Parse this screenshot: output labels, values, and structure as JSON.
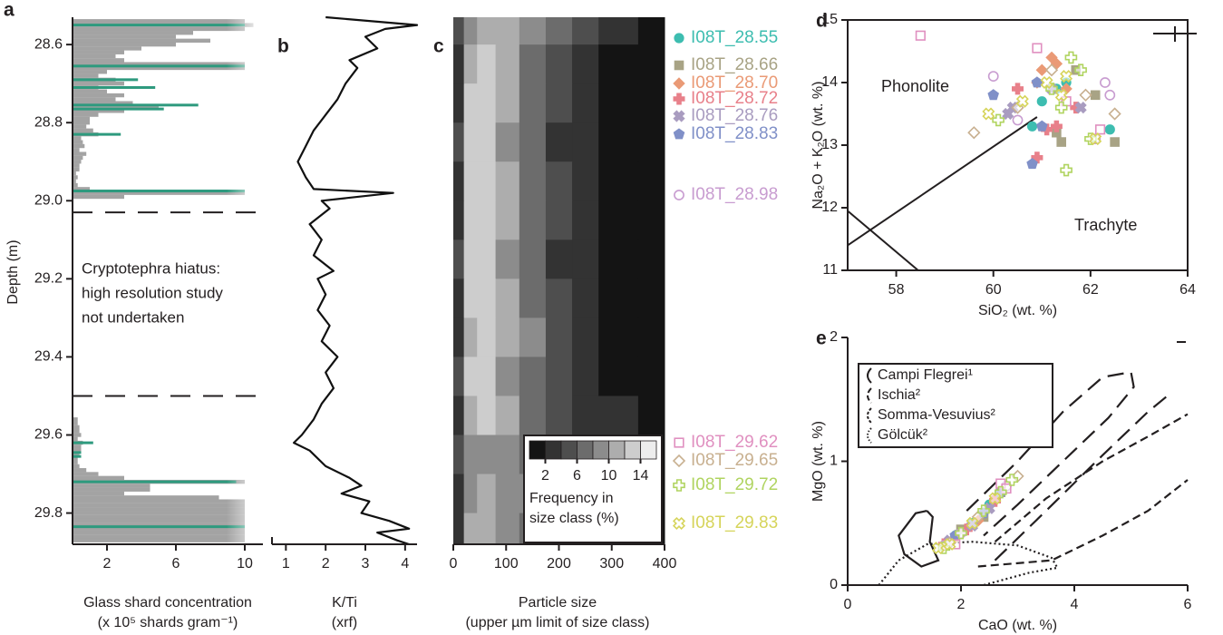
{
  "chart_data": [
    {
      "type": "bar",
      "label": "a",
      "orientation": "horizontal",
      "ylabel": "Depth (m)",
      "xlabel": [
        "Glass shard concentration",
        "(x 10⁵ shards gram⁻¹)"
      ],
      "ylim": [
        28.53,
        29.88
      ],
      "xlim": [
        0,
        11
      ],
      "yticks": [
        28.6,
        28.8,
        {
          "value": 29,
          "label": "29.0"
        },
        29.2,
        29.4,
        29.6,
        29.8
      ],
      "xticks": [
        2,
        6,
        10
      ],
      "series": [
        {
          "color": "#a3a3a3",
          "y": [
            28.54,
            28.55,
            28.56,
            28.57,
            28.58,
            28.59,
            28.6,
            28.61,
            28.62,
            28.63,
            28.64,
            28.65,
            28.66,
            28.67,
            28.68,
            28.69,
            28.7,
            28.71,
            28.72,
            28.73,
            28.74,
            28.75,
            28.76,
            28.77,
            28.78,
            28.79,
            28.8,
            28.81,
            28.82,
            28.83,
            28.84,
            28.85,
            28.86,
            28.87,
            28.88,
            28.89,
            28.9,
            28.91,
            28.92,
            28.93,
            28.94,
            28.95,
            28.96,
            28.97,
            28.98,
            28.99,
            29.56,
            29.57,
            29.58,
            29.59,
            29.6,
            29.61,
            29.62,
            29.63,
            29.64,
            29.65,
            29.66,
            29.67,
            29.68,
            29.69,
            29.7,
            29.71,
            29.72,
            29.73,
            29.74,
            29.75,
            29.76,
            29.77,
            29.78,
            29.79,
            29.8,
            29.81,
            29.82,
            29.83,
            29.84,
            29.85,
            29.86,
            29.87
          ],
          "values": [
            10,
            10.5,
            10,
            7,
            6,
            8,
            6,
            4,
            3,
            2.5,
            3,
            10,
            10,
            2,
            1.5,
            2.5,
            3,
            1.5,
            2,
            3,
            2.5,
            3.5,
            5,
            3,
            1.5,
            1,
            1,
            0.8,
            1.2,
            1.5,
            0.5,
            0.6,
            0.7,
            0.4,
            0.8,
            0.6,
            0.5,
            0.4,
            0.4,
            0.2,
            0.3,
            0.2,
            0.3,
            1,
            10,
            3,
            0.3,
            0.3,
            0.4,
            0.4,
            0.5,
            0.3,
            0.6,
            0.5,
            0.5,
            0.4,
            0.3,
            0.3,
            0.4,
            0.8,
            1.5,
            3,
            10,
            4.5,
            4.5,
            3,
            8.5,
            10,
            10,
            10,
            10,
            10,
            10,
            10,
            10,
            10,
            10,
            10
          ]
        },
        {
          "color": "#2e9a7e",
          "y": [
            28.55,
            28.655,
            28.69,
            28.71,
            28.755,
            28.765,
            28.83,
            28.975,
            29.62,
            29.645,
            29.655,
            29.72,
            29.835
          ],
          "values": [
            10,
            10,
            3.8,
            4.8,
            7.3,
            5.3,
            2.8,
            10,
            1.2,
            0.5,
            0.5,
            9.5,
            10
          ]
        }
      ],
      "hiatus": [
        29.03,
        29.5
      ],
      "annotation": [
        "Cryptotephra hiatus:",
        "high resolution study",
        "not undertaken"
      ]
    },
    {
      "type": "line",
      "label": "b",
      "xlabel": [
        "K/Ti",
        "(xrf)"
      ],
      "ylim": [
        28.53,
        29.88
      ],
      "xlim": [
        0.65,
        4.3
      ],
      "xticks": [
        1,
        2,
        3,
        4
      ],
      "color": "#111111",
      "y": [
        28.53,
        28.55,
        28.56,
        28.58,
        28.61,
        28.64,
        28.66,
        28.7,
        28.74,
        28.78,
        28.82,
        28.86,
        28.9,
        28.94,
        28.97,
        28.98,
        29.0,
        29.02,
        29.06,
        29.1,
        29.14,
        29.18,
        29.2,
        29.24,
        29.28,
        29.32,
        29.36,
        29.4,
        29.44,
        29.48,
        29.52,
        29.56,
        29.6,
        29.62,
        29.64,
        29.68,
        29.71,
        29.73,
        29.75,
        29.77,
        29.8,
        29.82,
        29.84,
        29.85,
        29.87,
        29.88
      ],
      "values": [
        2.0,
        4.3,
        3.5,
        3.0,
        3.3,
        2.6,
        2.8,
        2.5,
        2.3,
        2.0,
        1.7,
        1.5,
        1.3,
        1.5,
        1.7,
        3.7,
        1.9,
        2.1,
        1.6,
        1.9,
        1.7,
        2.2,
        1.8,
        2.0,
        1.8,
        2.1,
        1.9,
        2.3,
        2.0,
        2.2,
        1.9,
        1.7,
        1.4,
        1.2,
        1.6,
        2.0,
        2.6,
        2.9,
        2.4,
        3.1,
        2.9,
        3.6,
        4.1,
        3.3,
        3.8,
        4.1
      ]
    },
    {
      "type": "contour",
      "label": "c",
      "xlabel": [
        "Particle size",
        "(upper µm limit of size class)"
      ],
      "ylim": [
        28.53,
        29.88
      ],
      "xlim": [
        0,
        400
      ],
      "xticks": [
        0,
        100,
        200,
        300,
        400
      ],
      "x": [
        10,
        30,
        60,
        100,
        150,
        200,
        250,
        300,
        400
      ],
      "y": [
        28.55,
        28.65,
        28.75,
        28.85,
        28.95,
        29.05,
        29.15,
        29.25,
        29.35,
        29.45,
        29.55,
        29.65,
        29.75,
        29.85
      ],
      "values": [
        [
          4,
          9,
          11,
          11,
          9,
          7,
          5,
          3,
          1.5
        ],
        [
          3,
          11,
          13,
          10,
          7,
          4,
          2.5,
          1.5,
          1
        ],
        [
          3,
          12,
          13,
          10,
          6,
          4,
          2,
          1.5,
          1
        ],
        [
          4,
          13,
          12,
          9,
          6,
          3.5,
          2,
          1,
          1
        ],
        [
          3,
          12,
          12,
          10,
          7,
          5,
          3,
          1.5,
          1
        ],
        [
          3,
          12,
          13,
          10,
          7,
          4,
          2.5,
          1.5,
          1
        ],
        [
          4,
          13,
          12,
          9,
          6,
          3.5,
          2,
          1.5,
          1
        ],
        [
          3,
          12,
          13,
          10,
          7,
          4,
          2.5,
          1.5,
          1
        ],
        [
          3,
          11,
          12,
          10,
          8,
          5,
          3,
          1.5,
          1
        ],
        [
          4,
          12,
          13,
          9,
          6,
          4,
          2.5,
          1.5,
          1
        ],
        [
          3,
          11,
          12,
          10,
          7,
          5,
          3,
          2,
          1
        ],
        [
          4,
          8,
          9,
          8,
          7,
          5,
          4,
          2.5,
          1.5
        ],
        [
          3,
          9,
          10,
          9,
          8,
          6,
          4,
          2.5,
          1.5
        ],
        [
          3,
          10,
          11,
          9,
          7,
          5,
          3.5,
          2,
          1.5
        ]
      ],
      "levels": [
        2,
        4,
        6,
        8,
        10,
        12,
        14
      ],
      "colors": [
        "#141414",
        "#333333",
        "#4e4e4e",
        "#6c6c6c",
        "#8c8c8c",
        "#adadad",
        "#cdcdcd",
        "#ededed"
      ],
      "cbticks": [
        2,
        6,
        10,
        14
      ],
      "cblabel": [
        "Frequency in",
        "size class (%)"
      ]
    },
    {
      "type": "scatter",
      "label": "d",
      "xlabel": "SiO₂ (wt. %)",
      "ylabel": "Na₂O + K₂O (wt. %)",
      "xlim": [
        57,
        64
      ],
      "ylim": [
        11,
        15
      ],
      "xticks": [
        58,
        60,
        62,
        64
      ],
      "yticks": [
        11,
        12,
        13,
        14,
        15
      ],
      "regions": [
        "Phonolite",
        "Trachyte"
      ],
      "boundaries": {
        "x": [
          57,
          60.9,
          null,
          57,
          58.45
        ],
        "y": [
          11.4,
          13.45,
          null,
          11.95,
          11
        ]
      },
      "series": [
        {
          "name": "I08T_28.55",
          "color": "#3dbdb0",
          "marker": "circle",
          "filled": true,
          "x": [
            61.0,
            61.3,
            60.8,
            62.4,
            61.5
          ],
          "y": [
            13.7,
            13.9,
            13.3,
            13.25,
            14.0
          ]
        },
        {
          "name": "I08T_28.66",
          "color": "#a8a385",
          "marker": "square",
          "filled": true,
          "x": [
            61.7,
            62.1,
            61.4,
            62.5,
            61.3
          ],
          "y": [
            14.2,
            13.8,
            13.05,
            13.05,
            13.2
          ]
        },
        {
          "name": "I08T_28.70",
          "color": "#ea9a76",
          "marker": "diamond",
          "filled": true,
          "x": [
            61.2,
            61.0,
            61.5,
            60.9,
            61.3
          ],
          "y": [
            14.4,
            14.2,
            13.9,
            14.0,
            14.3
          ]
        },
        {
          "name": "I08T_28.72",
          "color": "#e8808a",
          "marker": "plus",
          "filled": true,
          "x": [
            61.3,
            60.9,
            61.1,
            60.5,
            61.7
          ],
          "y": [
            13.3,
            12.8,
            13.25,
            13.9,
            13.6
          ]
        },
        {
          "name": "I08T_28.76",
          "color": "#a99cc0",
          "marker": "cross",
          "filled": true,
          "x": [
            60.4,
            61.8,
            61.2,
            60.3
          ],
          "y": [
            13.6,
            13.6,
            13.9,
            13.5
          ]
        },
        {
          "name": "I08T_28.83",
          "color": "#8090c8",
          "marker": "pentagon",
          "filled": true,
          "x": [
            60.0,
            60.8,
            61.0,
            60.9
          ],
          "y": [
            13.8,
            12.7,
            13.3,
            14.0
          ]
        },
        {
          "name": "I08T_28.98",
          "color": "#c89cd0",
          "marker": "circle",
          "filled": false,
          "x": [
            60.0,
            62.3,
            62.4,
            60.5,
            62.1
          ],
          "y": [
            14.1,
            14.0,
            13.8,
            13.4,
            13.1
          ]
        },
        {
          "name": "I08T_29.62",
          "color": "#e090c0",
          "marker": "square",
          "filled": false,
          "x": [
            58.5,
            60.9,
            62.2,
            61.5
          ],
          "y": [
            14.75,
            14.55,
            13.25,
            13.7
          ]
        },
        {
          "name": "I08T_29.65",
          "color": "#c8b090",
          "marker": "diamond",
          "filled": false,
          "x": [
            59.6,
            61.9,
            62.5,
            60.5,
            61.2
          ],
          "y": [
            13.2,
            13.8,
            13.5,
            13.6,
            14.2
          ]
        },
        {
          "name": "I08T_29.72",
          "color": "#b0d460",
          "marker": "plus",
          "filled": false,
          "x": [
            60.1,
            61.6,
            62.0,
            61.5,
            61.8,
            61.2,
            61.4
          ],
          "y": [
            13.4,
            14.4,
            13.1,
            12.6,
            14.2,
            13.9,
            13.6
          ]
        },
        {
          "name": "I08T_29.83",
          "color": "#d6d45a",
          "marker": "cross",
          "filled": false,
          "x": [
            59.9,
            61.1,
            61.4,
            60.6,
            62.1,
            61.5
          ],
          "y": [
            13.5,
            14.0,
            13.8,
            13.7,
            13.1,
            14.1
          ]
        }
      ]
    },
    {
      "type": "scatter",
      "label": "e",
      "xlabel": "CaO (wt. %)",
      "ylabel": "MgO (wt. %)",
      "xlim": [
        0,
        6
      ],
      "ylim": [
        0,
        2
      ],
      "xticks": [
        0,
        2,
        4,
        6
      ],
      "yticks": [
        0,
        1,
        2
      ],
      "fields": [
        {
          "name": "Campi Flegrei¹",
          "style": "solid",
          "x": [
            1.4,
            1.2,
            0.9,
            1.0,
            1.3,
            1.6,
            1.45,
            1.5,
            1.4
          ],
          "y": [
            0.6,
            0.58,
            0.4,
            0.25,
            0.15,
            0.2,
            0.35,
            0.55,
            0.6
          ]
        },
        {
          "name": "Ischia²",
          "style": "longdash",
          "x": [
            2.1,
            3.0,
            3.8,
            4.5,
            5.0,
            5.05,
            4.6,
            3.8,
            3.0,
            2.4,
            null,
            2.6,
            3.5,
            4.5,
            5.3,
            5.7
          ],
          "y": [
            0.6,
            1.0,
            1.4,
            1.68,
            1.72,
            1.6,
            1.35,
            1.0,
            0.65,
            0.4,
            null,
            0.2,
            0.6,
            1.05,
            1.4,
            1.55
          ]
        },
        {
          "name": "Somma-Vesuvius²",
          "style": "dash",
          "x": [
            2.6,
            3.5,
            4.5,
            5.3,
            6,
            null,
            2.3,
            3.6,
            4.5,
            5.3,
            6
          ],
          "y": [
            0.35,
            0.7,
            1.0,
            1.2,
            1.38,
            null,
            0.15,
            0.2,
            0.4,
            0.6,
            0.85
          ]
        },
        {
          "name": "Gölcük²",
          "style": "dot",
          "x": [
            0.55,
            0.9,
            1.4,
            2.2,
            3.0,
            3.6,
            3.7,
            3.2,
            2.8,
            2.4
          ],
          "y": [
            0,
            0.2,
            0.33,
            0.35,
            0.32,
            0.22,
            0.14,
            0.1,
            0.05,
            0
          ]
        }
      ],
      "series": [
        {
          "color": "#3dbdb0",
          "marker": "circle",
          "filled": true,
          "x": [
            1.8,
            2.2,
            1.9,
            2.5
          ],
          "y": [
            0.35,
            0.5,
            0.4,
            0.65
          ]
        },
        {
          "color": "#a8a385",
          "marker": "square",
          "filled": true,
          "x": [
            2.0,
            2.4,
            2.7
          ],
          "y": [
            0.45,
            0.55,
            0.75
          ]
        },
        {
          "color": "#ea9a76",
          "marker": "diamond",
          "filled": true,
          "x": [
            1.9,
            2.3,
            2.6
          ],
          "y": [
            0.38,
            0.52,
            0.7
          ]
        },
        {
          "color": "#e8808a",
          "marker": "plus",
          "filled": true,
          "x": [
            1.7,
            2.1,
            2.6
          ],
          "y": [
            0.33,
            0.45,
            0.68
          ]
        },
        {
          "color": "#a99cc0",
          "marker": "cross",
          "filled": true,
          "x": [
            1.8,
            2.2,
            2.5
          ],
          "y": [
            0.36,
            0.48,
            0.62
          ]
        },
        {
          "color": "#8090c8",
          "marker": "pentagon",
          "filled": true,
          "x": [
            1.9,
            2.4,
            2.7
          ],
          "y": [
            0.4,
            0.58,
            0.75
          ]
        },
        {
          "color": "#c89cd0",
          "marker": "circle",
          "filled": false,
          "x": [
            1.7,
            2.0,
            2.8
          ],
          "y": [
            0.32,
            0.42,
            0.8
          ]
        },
        {
          "color": "#e090c0",
          "marker": "square",
          "filled": false,
          "x": [
            1.9,
            2.7,
            2.8
          ],
          "y": [
            0.33,
            0.82,
            0.78
          ]
        },
        {
          "color": "#c8b090",
          "marker": "diamond",
          "filled": false,
          "x": [
            1.8,
            2.3,
            3.0
          ],
          "y": [
            0.34,
            0.55,
            0.88
          ]
        },
        {
          "color": "#b0d460",
          "marker": "plus",
          "filled": false,
          "x": [
            1.7,
            2.0,
            2.4,
            2.7,
            2.9
          ],
          "y": [
            0.3,
            0.42,
            0.6,
            0.75,
            0.85
          ]
        },
        {
          "color": "#d6d45a",
          "marker": "cross",
          "filled": false,
          "x": [
            1.6,
            1.8,
            2.2,
            2.6
          ],
          "y": [
            0.3,
            0.33,
            0.5,
            0.7
          ]
        }
      ]
    }
  ]
}
